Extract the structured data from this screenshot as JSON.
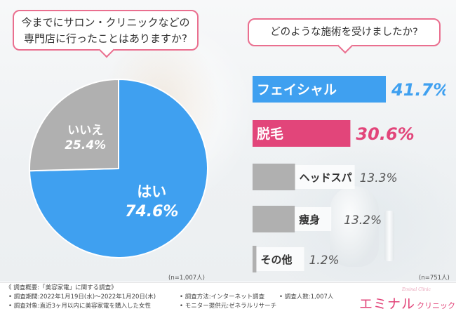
{
  "questions": {
    "q1": [
      "今までにサロン・クリニックなどの",
      "専門店に行ったことはありますか?"
    ],
    "q2": "どのような施術を受けましたか?"
  },
  "chart_data": [
    {
      "type": "pie",
      "title": "今までにサロン・クリニックなどの専門店に行ったことはありますか?",
      "categories": [
        "はい",
        "いいえ"
      ],
      "values": [
        74.6,
        25.4
      ],
      "value_labels": [
        "74.6%",
        "25.4%"
      ],
      "colors": [
        "#3fa0f0",
        "#b0b0b0"
      ],
      "note": "(n=1,007人)"
    },
    {
      "type": "bar",
      "orientation": "horizontal",
      "title": "どのような施術を受けましたか?",
      "categories": [
        "フェイシャル",
        "脱毛",
        "ヘッドスパ",
        "痩身",
        "その他"
      ],
      "values": [
        41.7,
        30.6,
        13.3,
        13.2,
        1.2
      ],
      "value_labels": [
        "41.7%",
        "30.6%",
        "13.3%",
        "13.2%",
        "1.2%"
      ],
      "colors": [
        "#3fa0f0",
        "#e2457a",
        "#b0b0b0",
        "#b0b0b0",
        "#b0b0b0"
      ],
      "xlim": [
        0,
        41.7
      ],
      "grid": false,
      "note": "(n=751人)"
    }
  ],
  "footer": {
    "title": "《 調査概要:「美容家電」に関する調査》",
    "period": "• 調査期間:2022年1月19日(水)〜2022年1月20日(木)",
    "target": "• 調査対象:直近3ヶ月以内に美容家電を購入した女性",
    "method": "• 調査方法:インターネット調査",
    "provider": "• モニター提供元:ゼネラルリサーチ",
    "count": "• 調査人数:1,007人"
  },
  "logo": {
    "main": "エミナル",
    "sub": "クリニック",
    "tagline": "Eminal Clinic"
  },
  "colors": {
    "blue": "#3fa0f0",
    "pink": "#e2457a",
    "gray": "#b0b0b0",
    "accent_border": "#ea6f8f"
  }
}
